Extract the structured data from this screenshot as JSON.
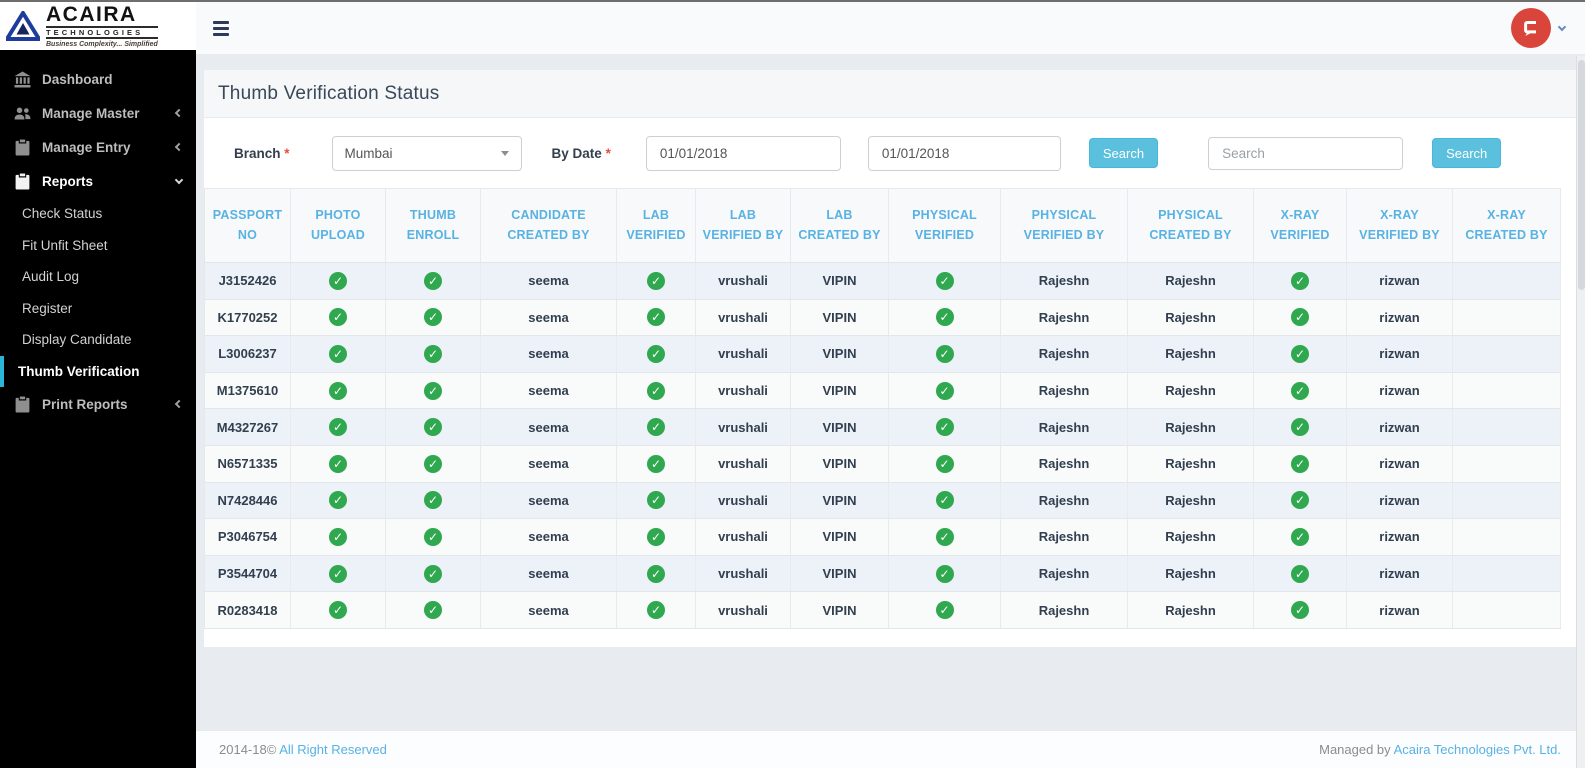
{
  "brand": {
    "name": "ACAIRA",
    "sub": "TECHNOLOGIES",
    "tagline": "Business Complexity... Simplified"
  },
  "sidebar": {
    "items": [
      {
        "label": "Dashboard",
        "icon": "bank-icon",
        "chevron": null,
        "type": "item",
        "active": false
      },
      {
        "label": "Manage Master",
        "icon": "users-icon",
        "chevron": "left",
        "type": "item",
        "active": false
      },
      {
        "label": "Manage Entry",
        "icon": "clipboard-icon",
        "chevron": "left",
        "type": "item",
        "active": false
      },
      {
        "label": "Reports",
        "icon": "clipboard-icon",
        "chevron": "down",
        "type": "item",
        "active": true
      },
      {
        "label": "Check Status",
        "icon": null,
        "chevron": null,
        "type": "subitem",
        "active": false
      },
      {
        "label": "Fit Unfit Sheet",
        "icon": null,
        "chevron": null,
        "type": "subitem",
        "active": false
      },
      {
        "label": "Audit Log",
        "icon": null,
        "chevron": null,
        "type": "subitem",
        "active": false
      },
      {
        "label": "Register",
        "icon": null,
        "chevron": null,
        "type": "subitem",
        "active": false
      },
      {
        "label": "Display Candidate",
        "icon": null,
        "chevron": null,
        "type": "subitem",
        "active": false
      },
      {
        "label": "Thumb Verification",
        "icon": null,
        "chevron": null,
        "type": "subitem",
        "active": true
      },
      {
        "label": "Print Reports",
        "icon": "clipboard-icon",
        "chevron": "left",
        "type": "item",
        "active": false
      }
    ]
  },
  "page": {
    "title": "Thumb Verification Status"
  },
  "filters": {
    "branch_label": "Branch",
    "required_mark": "*",
    "branch_value": "Mumbai",
    "by_date_label": "By Date",
    "date_from": "01/01/2018",
    "date_to": "01/01/2018",
    "search_button": "Search",
    "search_placeholder": "Search",
    "search_button_secondary": "Search"
  },
  "table": {
    "columns": [
      "PASSPORT NO",
      "PHOTO UPLOAD",
      "THUMB ENROLL",
      "CANDIDATE CREATED BY",
      "LAB VERIFIED",
      "LAB VERIFIED BY",
      "LAB CREATED BY",
      "PHYSICAL VERIFIED",
      "PHYSICAL VERIFIED BY",
      "PHYSICAL CREATED BY",
      "X-RAY VERIFIED",
      "X-RAY VERIFIED BY",
      "X-RAY CREATED BY"
    ],
    "rows": [
      [
        "J3152426",
        "✓",
        "✓",
        "seema",
        "✓",
        "vrushali",
        "VIPIN",
        "✓",
        "Rajeshn",
        "Rajeshn",
        "✓",
        "rizwan",
        ""
      ],
      [
        "K1770252",
        "✓",
        "✓",
        "seema",
        "✓",
        "vrushali",
        "VIPIN",
        "✓",
        "Rajeshn",
        "Rajeshn",
        "✓",
        "rizwan",
        ""
      ],
      [
        "L3006237",
        "✓",
        "✓",
        "seema",
        "✓",
        "vrushali",
        "VIPIN",
        "✓",
        "Rajeshn",
        "Rajeshn",
        "✓",
        "rizwan",
        ""
      ],
      [
        "M1375610",
        "✓",
        "✓",
        "seema",
        "✓",
        "vrushali",
        "VIPIN",
        "✓",
        "Rajeshn",
        "Rajeshn",
        "✓",
        "rizwan",
        ""
      ],
      [
        "M4327267",
        "✓",
        "✓",
        "seema",
        "✓",
        "vrushali",
        "VIPIN",
        "✓",
        "Rajeshn",
        "Rajeshn",
        "✓",
        "rizwan",
        ""
      ],
      [
        "N6571335",
        "✓",
        "✓",
        "seema",
        "✓",
        "vrushali",
        "VIPIN",
        "✓",
        "Rajeshn",
        "Rajeshn",
        "✓",
        "rizwan",
        ""
      ],
      [
        "N7428446",
        "✓",
        "✓",
        "seema",
        "✓",
        "vrushali",
        "VIPIN",
        "✓",
        "Rajeshn",
        "Rajeshn",
        "✓",
        "rizwan",
        ""
      ],
      [
        "P3046754",
        "✓",
        "✓",
        "seema",
        "✓",
        "vrushali",
        "VIPIN",
        "✓",
        "Rajeshn",
        "Rajeshn",
        "✓",
        "rizwan",
        ""
      ],
      [
        "P3544704",
        "✓",
        "✓",
        "seema",
        "✓",
        "vrushali",
        "VIPIN",
        "✓",
        "Rajeshn",
        "Rajeshn",
        "✓",
        "rizwan",
        ""
      ],
      [
        "R0283418",
        "✓",
        "✓",
        "seema",
        "✓",
        "vrushali",
        "VIPIN",
        "✓",
        "Rajeshn",
        "Rajeshn",
        "✓",
        "rizwan",
        ""
      ]
    ]
  },
  "footer": {
    "left_prefix": "2014-18©",
    "left_link": "All Right Reserved",
    "right_prefix": "Managed by",
    "right_link": "Acaira Technologies Pvt. Ltd."
  },
  "colors": {
    "accent_blue": "#58b2e3",
    "button_blue": "#5bc0de",
    "check_green": "#2fa84f",
    "active_cyan": "#2bb5d8",
    "avatar_red": "#d9453a",
    "row_alt": "#edf1f8"
  }
}
